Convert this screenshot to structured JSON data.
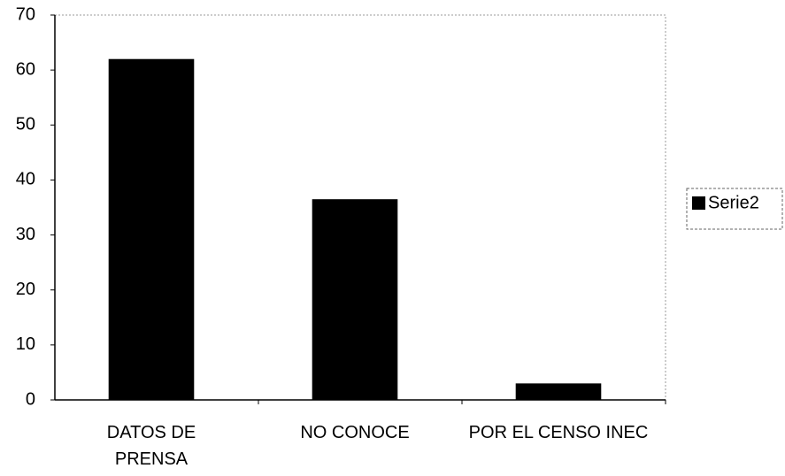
{
  "chart_data": {
    "type": "bar",
    "categories": [
      "DATOS DE PRENSA",
      "NO CONOCE",
      "POR EL CENSO INEC"
    ],
    "series": [
      {
        "name": "Serie2",
        "color": "#000000",
        "values": [
          62,
          36.5,
          3
        ]
      }
    ],
    "ylim": [
      0,
      70
    ],
    "yticks": [
      0,
      10,
      20,
      30,
      40,
      50,
      60,
      70
    ],
    "legend": "right"
  }
}
